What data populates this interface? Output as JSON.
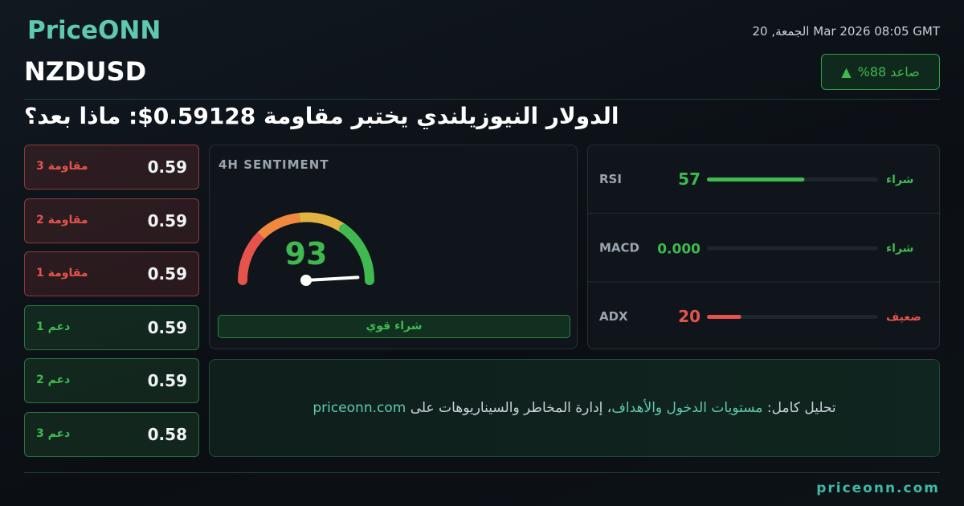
{
  "brand": "PriceONN",
  "timestamp": "الجمعة, 20 Mar 2026 08:05 GMT",
  "symbol": "NZDUSD",
  "badge": "صاعد 88%",
  "headline": "الدولار النيوزيلندي يختبر مقاومة 0.59128$: ماذا بعد؟",
  "levels": [
    {
      "label": "مقاومة 3",
      "value": 0.59,
      "color": "#e5534b"
    },
    {
      "label": "مقاومة 2",
      "value": 0.59,
      "color": "#e5534b"
    },
    {
      "label": "مقاومة 1",
      "value": 0.59,
      "color": "#e5534b"
    },
    {
      "label": "دعم 1",
      "value": 0.59,
      "color": "#3fb950"
    },
    {
      "label": "دعم 2",
      "value": 0.59,
      "color": "#3fb950"
    },
    {
      "label": "دعم 3",
      "value": 0.58,
      "color": "#3fb950"
    }
  ],
  "sentiment": {
    "title": "4H SENTIMENT",
    "score": 93,
    "range": [
      0,
      100
    ],
    "label": "شراء قوي",
    "color": "#3fb950"
  },
  "indicators": [
    {
      "name": "RSI",
      "value": 57,
      "signal": "شراء",
      "color": "#3fb950",
      "range": [
        0,
        100
      ]
    },
    {
      "name": "MACD",
      "value": 0,
      "value_label": "0.000",
      "signal": "شراء",
      "color": "#3fb950",
      "range": [
        0,
        100
      ]
    },
    {
      "name": "ADX",
      "value": 20,
      "signal": "ضعيف",
      "color": "#e5534b",
      "range": [
        0,
        100
      ]
    }
  ],
  "cta": {
    "parts": [
      "تحليل كامل: ",
      "مستويات الدخول والأهداف",
      "، إدارة المخاطر والسيناريوهات على ",
      "priceonn.com"
    ]
  },
  "footer": "priceonn.com"
}
